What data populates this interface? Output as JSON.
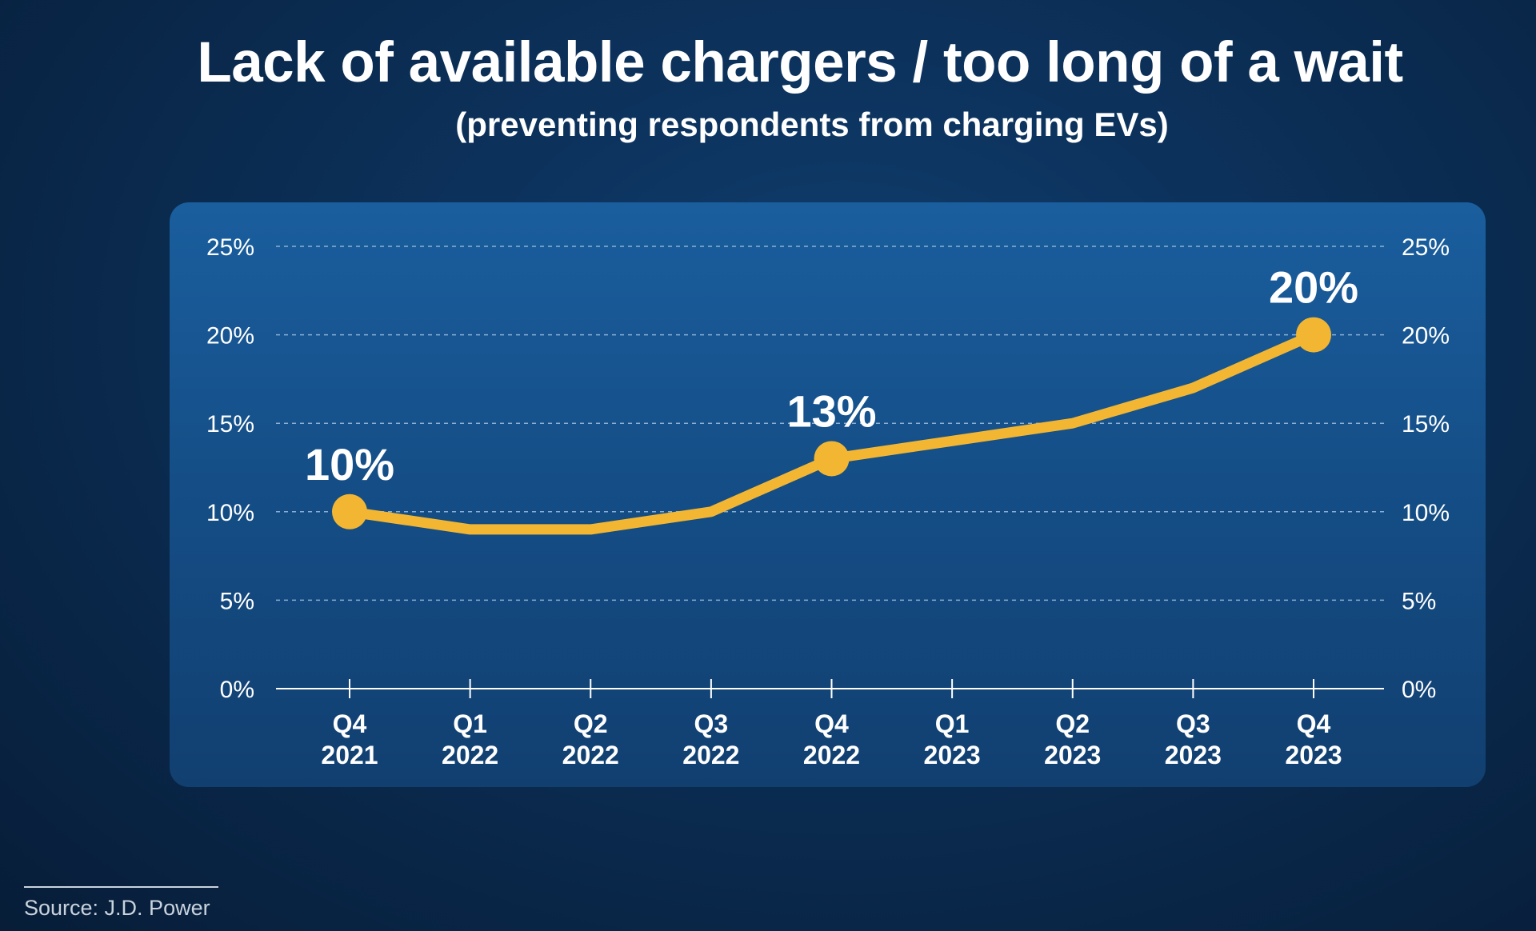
{
  "chart_data": {
    "type": "line",
    "title": "Lack of available chargers / too long of a wait",
    "subtitle": "(preventing respondents from charging EVs)",
    "categories": [
      [
        "Q4",
        "2021"
      ],
      [
        "Q1",
        "2022"
      ],
      [
        "Q2",
        "2022"
      ],
      [
        "Q3",
        "2022"
      ],
      [
        "Q4",
        "2022"
      ],
      [
        "Q1",
        "2023"
      ],
      [
        "Q2",
        "2023"
      ],
      [
        "Q3",
        "2023"
      ],
      [
        "Q4",
        "2023"
      ]
    ],
    "series": [
      {
        "values": [
          10,
          9,
          9,
          10,
          13,
          14,
          15,
          17,
          20
        ]
      }
    ],
    "highlighted_points": [
      {
        "index": 0,
        "label": "10%"
      },
      {
        "index": 4,
        "label": "13%"
      },
      {
        "index": 8,
        "label": "20%"
      }
    ],
    "yticks": [
      "0%",
      "5%",
      "10%",
      "15%",
      "20%",
      "25%"
    ],
    "ytick_values": [
      0,
      5,
      10,
      15,
      20,
      25
    ],
    "ylim": [
      0,
      25
    ],
    "xlabel": "",
    "ylabel": "",
    "grid": "dashed horizontal",
    "y_axis_labels": "left and right",
    "colors": {
      "line": "#f2b632",
      "panel": "#1a5a97",
      "background": "#0b2e55"
    }
  },
  "source": "Source: J.D. Power"
}
